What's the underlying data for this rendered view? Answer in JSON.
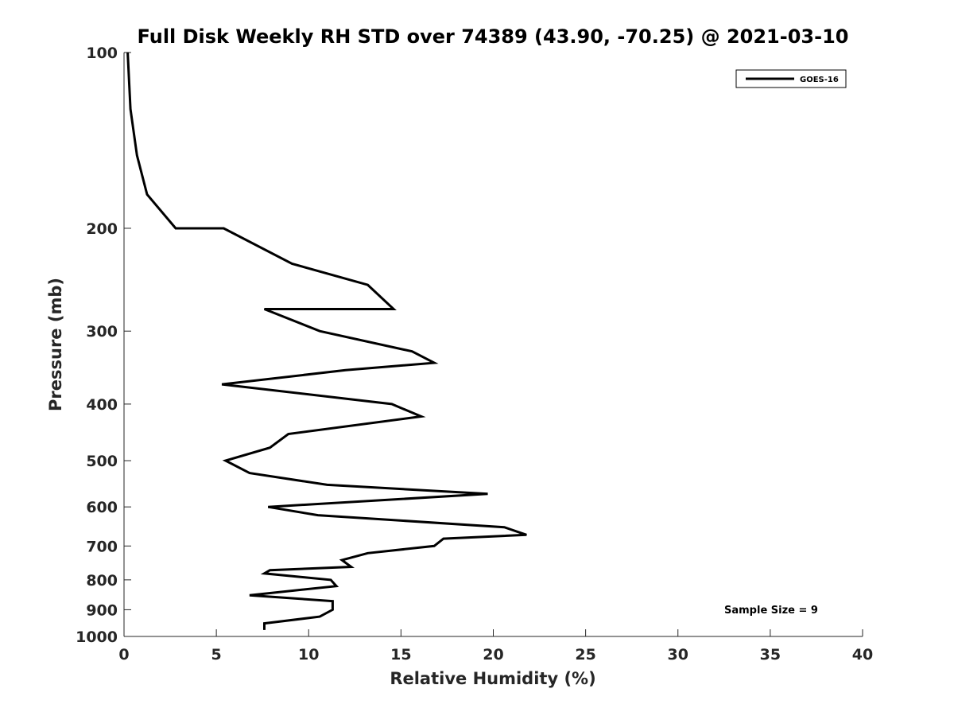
{
  "chart_data": {
    "type": "line",
    "title": "Full Disk Weekly RH STD over 74389 (43.90, -70.25) @ 2021-03-10",
    "xlabel": "Relative Humidity (%)",
    "ylabel": "Pressure (mb)",
    "xlim": [
      0,
      40
    ],
    "ylim": [
      100,
      1000
    ],
    "y_scale": "log",
    "y_reversed": true,
    "grid": false,
    "legend_position": "top-right",
    "xticks": [
      0,
      5,
      10,
      15,
      20,
      25,
      30,
      35,
      40
    ],
    "yticks": [
      100,
      200,
      300,
      400,
      500,
      600,
      700,
      800,
      900,
      1000
    ],
    "annotation": "Sample Size = 9",
    "series": [
      {
        "name": "GOES-16",
        "color": "#000000",
        "points": [
          [
            0.2,
            100
          ],
          [
            0.35,
            125
          ],
          [
            0.7,
            150
          ],
          [
            1.25,
            175
          ],
          [
            2.8,
            200
          ],
          [
            5.4,
            200
          ],
          [
            9.1,
            230
          ],
          [
            13.2,
            250
          ],
          [
            14.6,
            275
          ],
          [
            7.6,
            275
          ],
          [
            10.6,
            300
          ],
          [
            15.6,
            325
          ],
          [
            16.8,
            340
          ],
          [
            12.0,
            350
          ],
          [
            5.3,
            370
          ],
          [
            14.5,
            400
          ],
          [
            16.1,
            420
          ],
          [
            8.9,
            450
          ],
          [
            7.9,
            475
          ],
          [
            5.5,
            500
          ],
          [
            6.8,
            525
          ],
          [
            11.0,
            550
          ],
          [
            19.7,
            570
          ],
          [
            7.8,
            600
          ],
          [
            10.5,
            620
          ],
          [
            20.6,
            650
          ],
          [
            21.8,
            670
          ],
          [
            17.3,
            680
          ],
          [
            16.8,
            700
          ],
          [
            13.2,
            720
          ],
          [
            11.8,
            740
          ],
          [
            12.3,
            760
          ],
          [
            7.9,
            770
          ],
          [
            7.6,
            780
          ],
          [
            11.2,
            800
          ],
          [
            11.5,
            820
          ],
          [
            6.8,
            850
          ],
          [
            11.3,
            870
          ],
          [
            11.3,
            900
          ],
          [
            10.6,
            925
          ],
          [
            7.6,
            950
          ],
          [
            7.6,
            975
          ]
        ]
      }
    ]
  }
}
